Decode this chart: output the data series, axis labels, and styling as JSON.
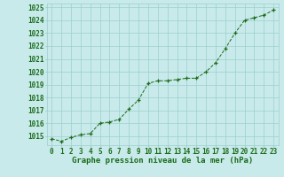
{
  "x": [
    0,
    1,
    2,
    3,
    4,
    5,
    6,
    7,
    8,
    9,
    10,
    11,
    12,
    13,
    14,
    15,
    16,
    17,
    18,
    19,
    20,
    21,
    22,
    23
  ],
  "y": [
    1014.8,
    1014.6,
    1014.9,
    1015.1,
    1015.2,
    1016.0,
    1016.1,
    1016.3,
    1017.1,
    1017.8,
    1019.1,
    1019.3,
    1019.3,
    1019.4,
    1019.5,
    1019.5,
    1020.0,
    1020.7,
    1021.8,
    1023.0,
    1024.0,
    1024.2,
    1024.4,
    1024.8
  ],
  "line_color": "#1a6b1a",
  "marker_color": "#1a6b1a",
  "bg_color": "#c8eaea",
  "grid_color": "#9ecece",
  "text_color": "#1a6b1a",
  "xlabel": "Graphe pression niveau de la mer (hPa)",
  "ylim": [
    1014.3,
    1025.3
  ],
  "yticks": [
    1015,
    1016,
    1017,
    1018,
    1019,
    1020,
    1021,
    1022,
    1023,
    1024,
    1025
  ],
  "xticks": [
    0,
    1,
    2,
    3,
    4,
    5,
    6,
    7,
    8,
    9,
    10,
    11,
    12,
    13,
    14,
    15,
    16,
    17,
    18,
    19,
    20,
    21,
    22,
    23
  ],
  "title_fontsize": 6.5,
  "tick_fontsize": 5.5
}
